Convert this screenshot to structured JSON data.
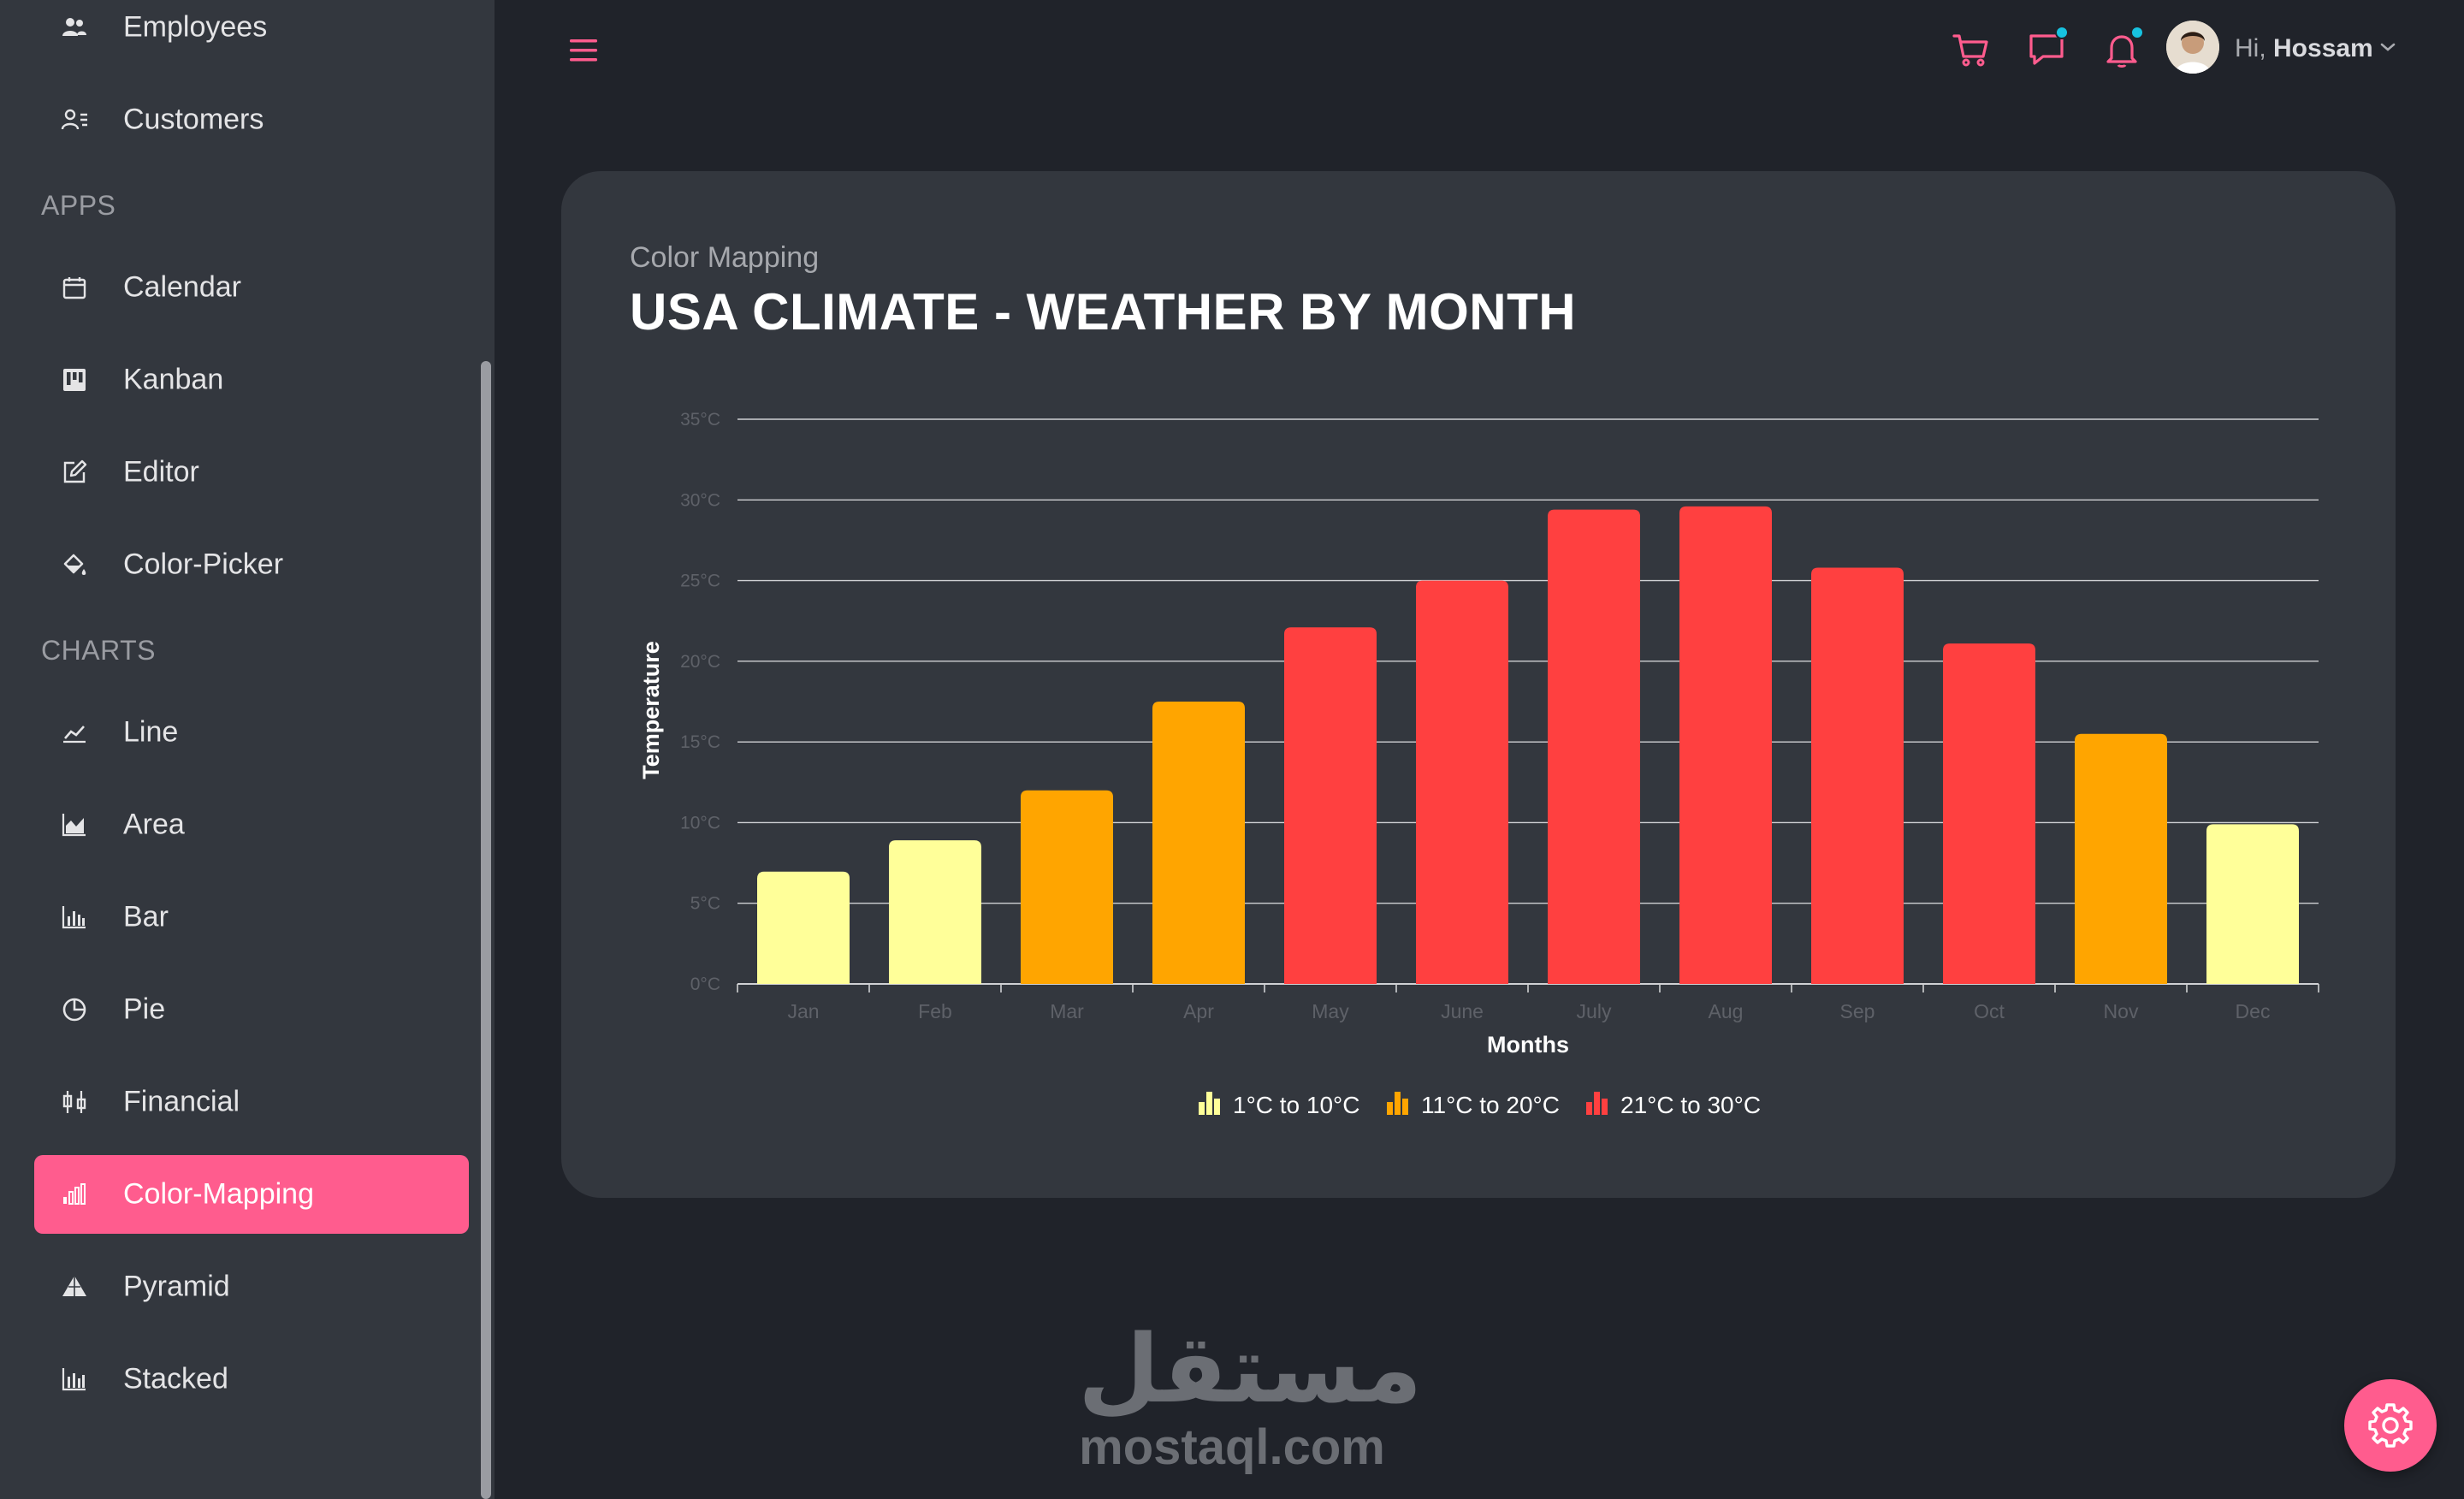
{
  "sidebar": {
    "items_top": [
      {
        "label": "Employees",
        "icon": "employees-icon"
      },
      {
        "label": "Customers",
        "icon": "customers-icon"
      }
    ],
    "sections": [
      {
        "title": "APPS",
        "items": [
          {
            "label": "Calendar",
            "icon": "calendar-icon"
          },
          {
            "label": "Kanban",
            "icon": "kanban-icon"
          },
          {
            "label": "Editor",
            "icon": "editor-icon"
          },
          {
            "label": "Color-Picker",
            "icon": "color-picker-icon"
          }
        ]
      },
      {
        "title": "CHARTS",
        "items": [
          {
            "label": "Line",
            "icon": "line-chart-icon"
          },
          {
            "label": "Area",
            "icon": "area-chart-icon"
          },
          {
            "label": "Bar",
            "icon": "bar-chart-icon"
          },
          {
            "label": "Pie",
            "icon": "pie-chart-icon"
          },
          {
            "label": "Financial",
            "icon": "financial-icon"
          },
          {
            "label": "Color-Mapping",
            "icon": "color-mapping-icon",
            "active": true
          },
          {
            "label": "Pyramid",
            "icon": "pyramid-icon"
          },
          {
            "label": "Stacked",
            "icon": "stacked-chart-icon"
          }
        ]
      }
    ]
  },
  "header": {
    "greeting_prefix": "Hi,",
    "user_name": "Hossam",
    "icons": [
      "menu-icon",
      "cart-icon",
      "chat-icon",
      "bell-icon",
      "chevron-down-icon"
    ]
  },
  "card": {
    "subtitle": "Color Mapping",
    "title": "USA CLIMATE - WEATHER BY MONTH"
  },
  "colors": {
    "accent": "#ff5c8e",
    "notification_dot": "#17c2e0",
    "range_low": "#ffff99",
    "range_mid": "#ffa500",
    "range_high": "#ff4040"
  },
  "chart_data": {
    "type": "bar",
    "title": "",
    "xlabel": "Months",
    "ylabel": "Temperature",
    "categories": [
      "Jan",
      "Feb",
      "Mar",
      "Apr",
      "May",
      "June",
      "July",
      "Aug",
      "Sep",
      "Oct",
      "Nov",
      "Dec"
    ],
    "values": [
      6.96,
      8.9,
      12,
      17.5,
      22.1,
      25,
      29.4,
      29.6,
      25.8,
      21.1,
      15.5,
      9.9
    ],
    "ylim": [
      0,
      35
    ],
    "yticks": [
      "0°C",
      "5°C",
      "10°C",
      "15°C",
      "20°C",
      "25°C",
      "30°C",
      "35°C"
    ],
    "grid": true,
    "legend_position": "bottom",
    "color_ranges": [
      {
        "label": "1°C to 10°C",
        "color": "#ffff99",
        "start": 1,
        "end": 10
      },
      {
        "label": "11°C to 20°C",
        "color": "#ffa500",
        "start": 11,
        "end": 20
      },
      {
        "label": "21°C to 30°C",
        "color": "#ff4040",
        "start": 21,
        "end": 30
      }
    ]
  },
  "watermark": {
    "arabic": "مستقل",
    "latin": "mostaql.com"
  }
}
